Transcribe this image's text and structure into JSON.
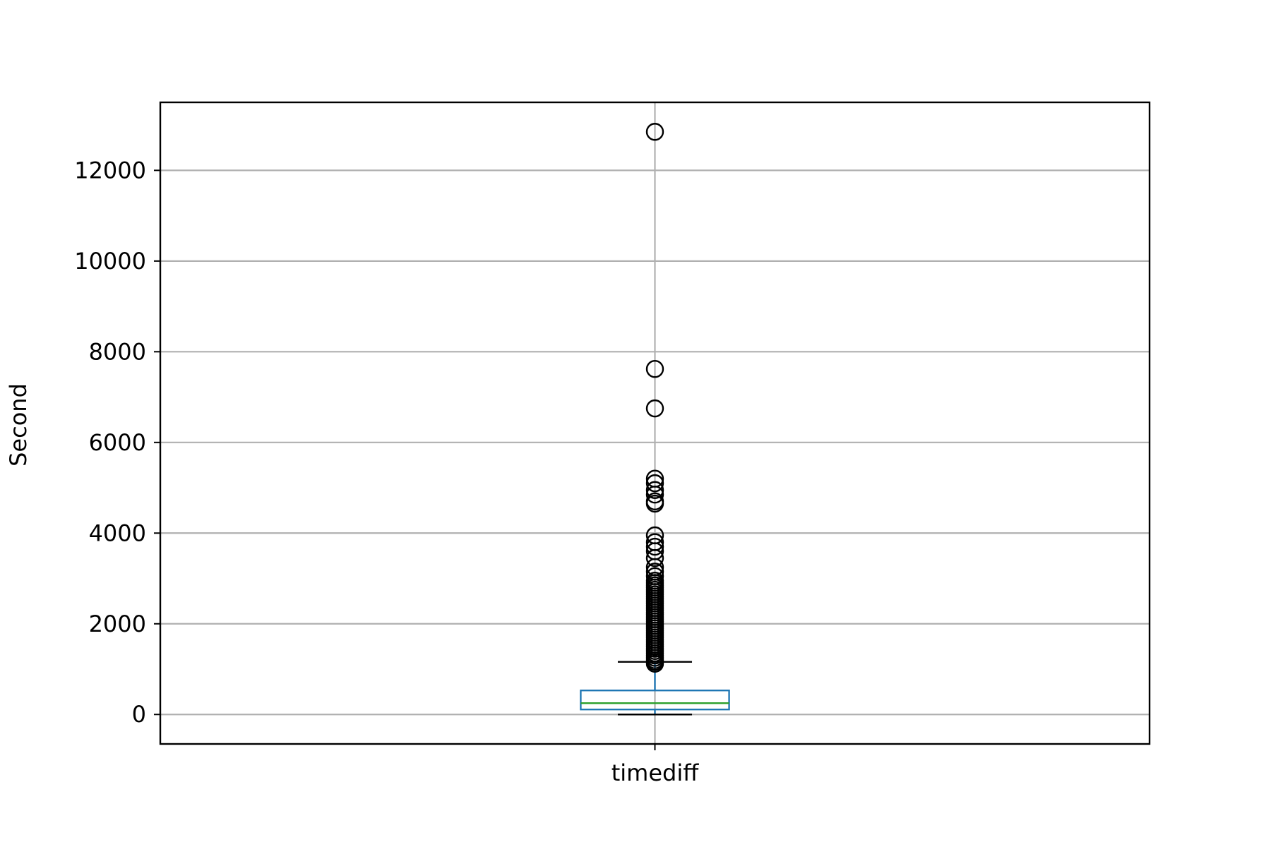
{
  "chart_data": {
    "type": "boxplot",
    "title": "",
    "xlabel": "",
    "ylabel": "Second",
    "categories": [
      "timediff"
    ],
    "ylim": [
      -650,
      13500
    ],
    "yticks": [
      0,
      2000,
      4000,
      6000,
      8000,
      10000,
      12000
    ],
    "grid": true,
    "boxes": [
      {
        "name": "timediff",
        "whisker_low": 0,
        "q1": 110,
        "median": 250,
        "q3": 530,
        "whisker_high": 1160,
        "outliers": [
          1120,
          1160,
          1200,
          1250,
          1300,
          1350,
          1400,
          1450,
          1500,
          1550,
          1600,
          1650,
          1700,
          1750,
          1800,
          1850,
          1900,
          1950,
          2000,
          2050,
          2100,
          2150,
          2200,
          2250,
          2300,
          2350,
          2400,
          2450,
          2500,
          2550,
          2600,
          2650,
          2700,
          2750,
          2800,
          2850,
          2900,
          2950,
          3050,
          3150,
          3250,
          3450,
          3600,
          3700,
          3800,
          3950,
          4650,
          4700,
          4850,
          4950,
          5100,
          5200,
          6750,
          7620,
          12850
        ]
      }
    ],
    "colors": {
      "box": "#1f77b4",
      "median": "#2ca02c",
      "whisker": "#1f77b4",
      "cap": "#000000",
      "outlier": "#000000",
      "grid": "#b0b0b0"
    }
  }
}
